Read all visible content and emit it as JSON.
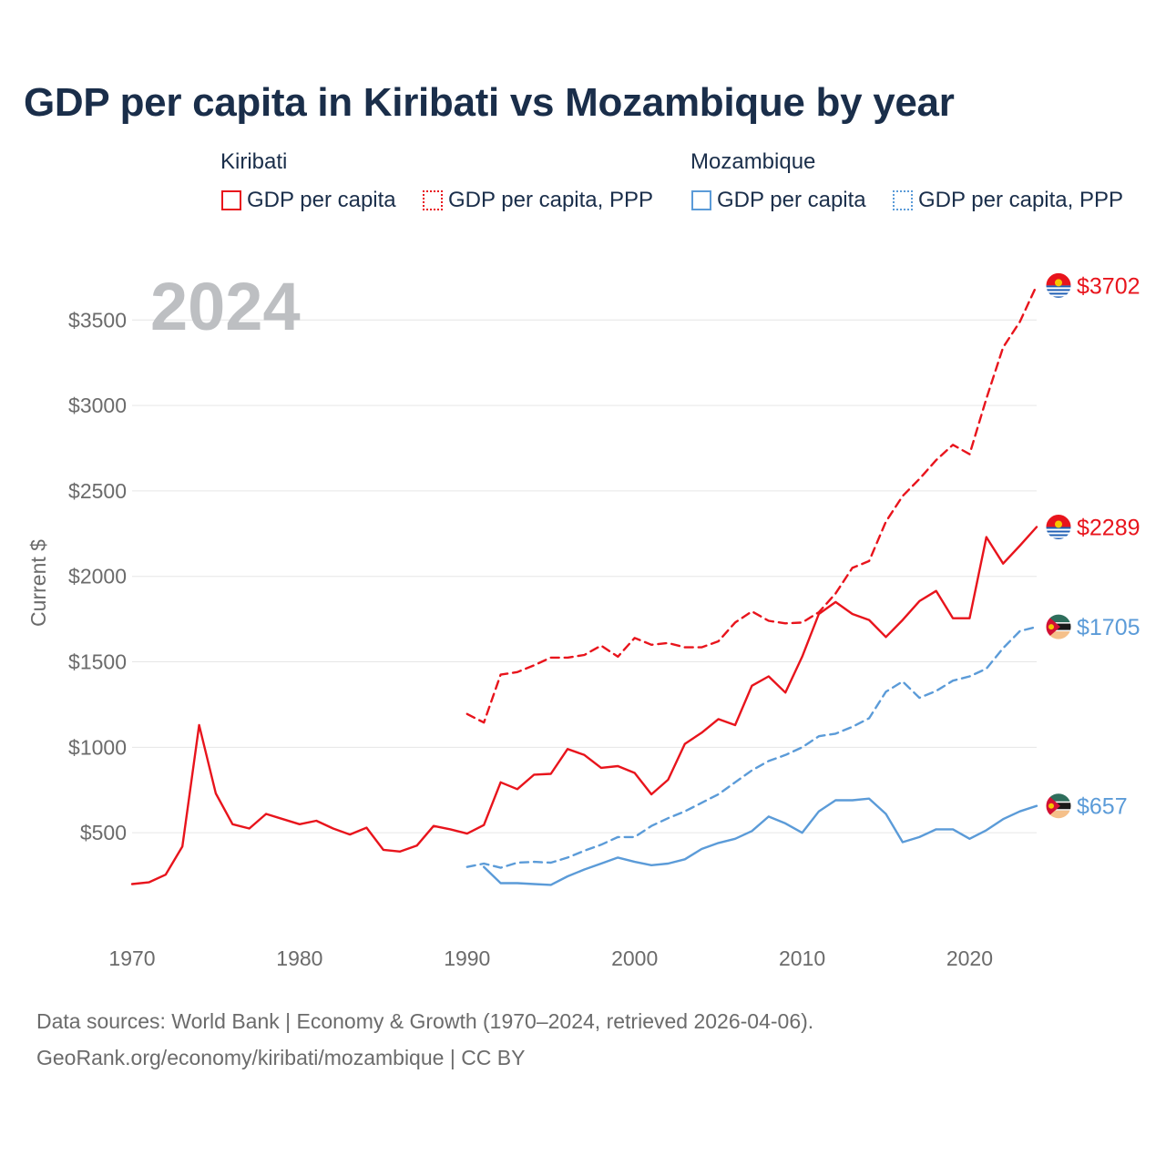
{
  "page": {
    "title": "GDP per capita in Kiribati vs Mozambique by year",
    "year_overlay": "2024",
    "footer_line1": "Data sources: World Bank | Economy & Growth (1970–2024, retrieved 2026-04-06).",
    "footer_line2": "GeoRank.org/economy/kiribati/mozambique | CC BY"
  },
  "legend": {
    "kiribati_title": "Kiribati",
    "mozambique_title": "Mozambique",
    "items": [
      {
        "label": "GDP per capita",
        "color": "#e8141c",
        "style": "solid"
      },
      {
        "label": "GDP per capita, PPP",
        "color": "#e8141c",
        "style": "dotted"
      },
      {
        "label": "GDP per capita",
        "color": "#5b9bd8",
        "style": "solid"
      },
      {
        "label": "GDP per capita, PPP",
        "color": "#5b9bd8",
        "style": "dotted"
      }
    ]
  },
  "chart_data": {
    "type": "line",
    "title": "GDP per capita in Kiribati vs Mozambique by year",
    "xlabel": "",
    "ylabel": "Current $",
    "xlim": [
      1970,
      2024
    ],
    "ylim": [
      0,
      3800
    ],
    "x_ticks": [
      1970,
      1980,
      1990,
      2000,
      2010,
      2020
    ],
    "x_tick_labels": [
      "1970",
      "1980",
      "1990",
      "2000",
      "2010",
      "2020"
    ],
    "y_ticks": [
      500,
      1000,
      1500,
      2000,
      2500,
      3000,
      3500
    ],
    "y_tick_labels": [
      "$500",
      "$1000",
      "$1500",
      "$2000",
      "$2500",
      "$3000",
      "$3500"
    ],
    "grid": true,
    "series": [
      {
        "name": "Kiribati GDP per capita",
        "color": "#e8141c",
        "dash": "solid",
        "end_label": "$2289",
        "flag": "kiribati",
        "x": [
          1970,
          1971,
          1972,
          1973,
          1974,
          1975,
          1976,
          1977,
          1978,
          1979,
          1980,
          1981,
          1982,
          1983,
          1984,
          1985,
          1986,
          1987,
          1988,
          1989,
          1990,
          1991,
          1992,
          1993,
          1994,
          1995,
          1996,
          1997,
          1998,
          1999,
          2000,
          2001,
          2002,
          2003,
          2004,
          2005,
          2006,
          2007,
          2008,
          2009,
          2010,
          2011,
          2012,
          2013,
          2014,
          2015,
          2016,
          2017,
          2018,
          2019,
          2020,
          2021,
          2022,
          2023,
          2024
        ],
        "values": [
          200,
          210,
          255,
          420,
          1130,
          730,
          550,
          525,
          610,
          580,
          550,
          570,
          525,
          490,
          530,
          400,
          390,
          425,
          540,
          520,
          495,
          545,
          795,
          755,
          840,
          845,
          990,
          955,
          880,
          890,
          850,
          725,
          810,
          1020,
          1085,
          1165,
          1130,
          1360,
          1415,
          1320,
          1530,
          1780,
          1850,
          1780,
          1745,
          1645,
          1745,
          1855,
          1915,
          1755,
          1755,
          2230,
          2075,
          2180,
          2289
        ]
      },
      {
        "name": "Kiribati GDP per capita, PPP",
        "color": "#e8141c",
        "dash": "dashed",
        "end_label": "$3702",
        "flag": "kiribati",
        "x": [
          1990,
          1991,
          1992,
          1993,
          1994,
          1995,
          1996,
          1997,
          1998,
          1999,
          2000,
          2001,
          2002,
          2003,
          2004,
          2005,
          2006,
          2007,
          2008,
          2009,
          2010,
          2011,
          2012,
          2013,
          2014,
          2015,
          2016,
          2017,
          2018,
          2019,
          2020,
          2021,
          2022,
          2023,
          2024
        ],
        "values": [
          1195,
          1145,
          1425,
          1440,
          1480,
          1525,
          1525,
          1540,
          1595,
          1530,
          1640,
          1600,
          1610,
          1585,
          1585,
          1620,
          1730,
          1795,
          1740,
          1725,
          1730,
          1790,
          1900,
          2050,
          2090,
          2320,
          2470,
          2570,
          2680,
          2770,
          2715,
          3040,
          3340,
          3490,
          3702
        ]
      },
      {
        "name": "Mozambique GDP per capita",
        "color": "#5b9bd8",
        "dash": "solid",
        "end_label": "$657",
        "flag": "mozambique",
        "x": [
          1991,
          1992,
          1993,
          1994,
          1995,
          1996,
          1997,
          1998,
          1999,
          2000,
          2001,
          2002,
          2003,
          2004,
          2005,
          2006,
          2007,
          2008,
          2009,
          2010,
          2011,
          2012,
          2013,
          2014,
          2015,
          2016,
          2017,
          2018,
          2019,
          2020,
          2021,
          2022,
          2023,
          2024
        ],
        "values": [
          300,
          205,
          205,
          200,
          195,
          245,
          285,
          320,
          355,
          330,
          310,
          320,
          345,
          405,
          440,
          465,
          510,
          595,
          555,
          500,
          625,
          690,
          690,
          700,
          610,
          445,
          475,
          520,
          520,
          465,
          515,
          580,
          625,
          657
        ]
      },
      {
        "name": "Mozambique GDP per capita, PPP",
        "color": "#5b9bd8",
        "dash": "dashed",
        "end_label": "$1705",
        "flag": "mozambique",
        "x": [
          1990,
          1991,
          1992,
          1993,
          1994,
          1995,
          1996,
          1997,
          1998,
          1999,
          2000,
          2001,
          2002,
          2003,
          2004,
          2005,
          2006,
          2007,
          2008,
          2009,
          2010,
          2011,
          2012,
          2013,
          2014,
          2015,
          2016,
          2017,
          2018,
          2019,
          2020,
          2021,
          2022,
          2023,
          2024
        ],
        "values": [
          300,
          320,
          295,
          325,
          330,
          325,
          355,
          395,
          430,
          475,
          475,
          540,
          585,
          625,
          675,
          725,
          795,
          865,
          920,
          955,
          1000,
          1065,
          1080,
          1120,
          1170,
          1325,
          1385,
          1290,
          1330,
          1390,
          1415,
          1460,
          1580,
          1680,
          1705
        ]
      }
    ]
  }
}
